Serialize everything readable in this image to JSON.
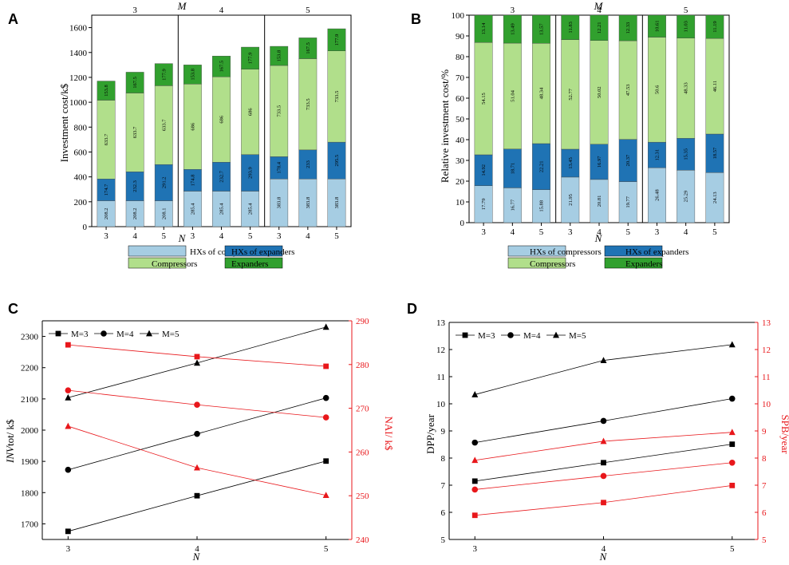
{
  "panels": {
    "A": {
      "label": "A",
      "m_label": "M",
      "m_values": [
        "3",
        "4",
        "5"
      ],
      "ylabel": "Investment cost/k$",
      "xlabel": "N",
      "y_ticks": [
        "0",
        "200",
        "400",
        "600",
        "800",
        "1000",
        "1200",
        "1400",
        "1600"
      ],
      "x_ticks": [
        "3",
        "4",
        "5",
        "3",
        "4",
        "5",
        "3",
        "4",
        "5"
      ]
    },
    "B": {
      "label": "B",
      "m_label": "M",
      "m_values": [
        "3",
        "4",
        "5"
      ],
      "ylabel": "Relative investment cost/%",
      "xlabel": "N",
      "y_ticks": [
        "0",
        "10",
        "20",
        "30",
        "40",
        "50",
        "60",
        "70",
        "80",
        "90",
        "100"
      ],
      "x_ticks": [
        "3",
        "4",
        "5",
        "3",
        "4",
        "5",
        "3",
        "4",
        "5"
      ]
    },
    "C": {
      "label": "C",
      "ylabel_italic": "INV",
      "ylabel_rest": "tot/ k$",
      "ylabel_right": "NAI/ k$",
      "xlabel": "N",
      "y_ticks": [
        "1700",
        "1800",
        "1900",
        "2000",
        "2100",
        "2200",
        "2300"
      ],
      "y_right_ticks": [
        "240",
        "250",
        "260",
        "270",
        "280",
        "290"
      ],
      "x_ticks": [
        "3",
        "4",
        "5"
      ]
    },
    "D": {
      "label": "D",
      "ylabel": "DPP/year",
      "ylabel_right": "SPB/year",
      "xlabel": "N",
      "y_ticks": [
        "5",
        "6",
        "7",
        "8",
        "9",
        "10",
        "11",
        "12",
        "13"
      ],
      "y_right_ticks": [
        "5",
        "6",
        "7",
        "8",
        "9",
        "10",
        "11",
        "12",
        "13"
      ],
      "x_ticks": [
        "3",
        "4",
        "5"
      ]
    }
  },
  "legend_bars": [
    "HXs of compressors",
    "HXs of expanders",
    "Compressors",
    "Expanders"
  ],
  "legend_lines": [
    "M=3",
    "M=4",
    "M=5"
  ],
  "colors": {
    "hxc": "#a6cde3",
    "hxe": "#1f73b4",
    "comp": "#b1df8b",
    "exp": "#31a02e",
    "red": "#e8171b",
    "black": "#000000"
  },
  "chart_data": [
    {
      "panel": "A",
      "type": "bar",
      "stacked": true,
      "title": "",
      "xlabel": "N",
      "ylabel": "Investment cost/k$",
      "ylim": [
        0,
        1700
      ],
      "groups": [
        "M=3",
        "M=3",
        "M=3",
        "M=4",
        "M=4",
        "M=4",
        "M=5",
        "M=5",
        "M=5"
      ],
      "categories": [
        "3",
        "4",
        "5",
        "3",
        "4",
        "5",
        "3",
        "4",
        "5"
      ],
      "series": [
        {
          "name": "HXs of compressors",
          "values": [
            208.2,
            208.2,
            208.1,
            285.4,
            285.4,
            285.4,
            383.8,
            383.8,
            383.8
          ],
          "labels": [
            "208.2",
            "208.2",
            "208.1",
            "285.4",
            "285.4",
            "285.4",
            "383.8",
            "383.8",
            "383.8"
          ]
        },
        {
          "name": "HXs of expanders",
          "values": [
            174.7,
            232.3,
            291.2,
            174.8,
            232.7,
            293.9,
            178.4,
            233,
            295.5
          ],
          "labels": [
            "174.7",
            "232.3",
            "291.2",
            "174.8",
            "232.7",
            "293.9",
            "178.4",
            "233",
            "295.5"
          ]
        },
        {
          "name": "Compressors",
          "values": [
            633.7,
            633.7,
            633.7,
            686,
            686,
            686,
            733.5,
            733.5,
            733.5
          ],
          "labels": [
            "633.7",
            "633.7",
            "633.7",
            "686",
            "686",
            "686",
            "733.5",
            "733.5",
            "733.5"
          ]
        },
        {
          "name": "Expanders",
          "values": [
            153.8,
            167.5,
            177.9,
            153.8,
            167.5,
            177.9,
            153.8,
            167.5,
            177.9
          ],
          "labels": [
            "153.8",
            "167.5",
            "177.9",
            "153.8",
            "167.5",
            "177.9",
            "153.8",
            "167.5",
            "177.9"
          ]
        }
      ]
    },
    {
      "panel": "B",
      "type": "bar",
      "stacked": true,
      "title": "",
      "xlabel": "N",
      "ylabel": "Relative investment cost/%",
      "ylim": [
        0,
        100
      ],
      "groups": [
        "M=3",
        "M=3",
        "M=3",
        "M=4",
        "M=4",
        "M=4",
        "M=5",
        "M=5",
        "M=5"
      ],
      "categories": [
        "3",
        "4",
        "5",
        "3",
        "4",
        "5",
        "3",
        "4",
        "5"
      ],
      "series": [
        {
          "name": "HXs of compressors",
          "values": [
            17.79,
            16.77,
            15.88,
            21.95,
            20.81,
            19.77,
            26.48,
            25.29,
            24.13
          ],
          "labels": [
            "17.79",
            "16.77",
            "15.88",
            "21.95",
            "20.81",
            "19.77",
            "26.48",
            "25.29",
            "24.13"
          ]
        },
        {
          "name": "HXs of expanders",
          "values": [
            14.92,
            18.71,
            22.21,
            13.45,
            16.97,
            20.37,
            12.31,
            15.35,
            18.57
          ],
          "labels": [
            "14.92",
            "18.71",
            "22.21",
            "13.45",
            "16.97",
            "20.37",
            "12.31",
            "15.35",
            "18.57"
          ]
        },
        {
          "name": "Compressors",
          "values": [
            54.15,
            51.04,
            48.34,
            52.77,
            50.02,
            47.53,
            50.6,
            48.33,
            46.11
          ],
          "labels": [
            "54.15",
            "51.04",
            "48.34",
            "52.77",
            "50.02",
            "47.53",
            "50.6",
            "48.33",
            "46.11"
          ]
        },
        {
          "name": "Expanders",
          "values": [
            13.14,
            13.49,
            13.57,
            11.83,
            12.21,
            12.33,
            10.61,
            11.03,
            11.19
          ],
          "labels": [
            "13.14",
            "13.49",
            "13.57",
            "11.83",
            "12.21",
            "12.33",
            "10.61",
            "11.03",
            "11.19"
          ]
        }
      ]
    },
    {
      "panel": "C",
      "type": "line",
      "title": "",
      "xlabel": "N",
      "x": [
        3,
        4,
        5
      ],
      "xlim": [
        2.8,
        5.2
      ],
      "ylim": [
        1650,
        2350
      ],
      "y2lim": [
        240,
        290
      ],
      "series": [
        {
          "name": "M=3",
          "axis": "left",
          "color": "#000000",
          "marker": "square",
          "values": [
            1676,
            1790,
            1901
          ]
        },
        {
          "name": "M=4",
          "axis": "left",
          "color": "#000000",
          "marker": "circle",
          "values": [
            1873,
            1988,
            2103
          ]
        },
        {
          "name": "M=5",
          "axis": "left",
          "color": "#000000",
          "marker": "triangle",
          "values": [
            2104,
            2215,
            2330
          ]
        },
        {
          "name": "M=3",
          "axis": "right",
          "color": "#e8171b",
          "marker": "square",
          "values": [
            284.5,
            281.8,
            279.6
          ]
        },
        {
          "name": "M=4",
          "axis": "right",
          "color": "#e8171b",
          "marker": "circle",
          "values": [
            274.1,
            270.8,
            267.9
          ]
        },
        {
          "name": "M=5",
          "axis": "right",
          "color": "#e8171b",
          "marker": "triangle",
          "values": [
            265.9,
            256.4,
            250.1
          ]
        }
      ]
    },
    {
      "panel": "D",
      "type": "line",
      "title": "",
      "xlabel": "N",
      "x": [
        3,
        4,
        5
      ],
      "xlim": [
        2.8,
        5.2
      ],
      "ylim": [
        5,
        13
      ],
      "y2lim": [
        5,
        13
      ],
      "series": [
        {
          "name": "M=3",
          "axis": "left",
          "color": "#000000",
          "marker": "square",
          "values": [
            7.15,
            7.83,
            8.51
          ]
        },
        {
          "name": "M=4",
          "axis": "left",
          "color": "#000000",
          "marker": "circle",
          "values": [
            8.57,
            9.37,
            10.19
          ]
        },
        {
          "name": "M=5",
          "axis": "left",
          "color": "#000000",
          "marker": "triangle",
          "values": [
            10.34,
            11.6,
            12.18
          ]
        },
        {
          "name": "M=3",
          "axis": "right",
          "color": "#e8171b",
          "marker": "square",
          "values": [
            5.89,
            6.36,
            6.99
          ]
        },
        {
          "name": "M=4",
          "axis": "right",
          "color": "#e8171b",
          "marker": "circle",
          "values": [
            6.84,
            7.34,
            7.83
          ]
        },
        {
          "name": "M=5",
          "axis": "right",
          "color": "#e8171b",
          "marker": "triangle",
          "values": [
            7.92,
            8.62,
            8.95
          ]
        }
      ]
    }
  ]
}
